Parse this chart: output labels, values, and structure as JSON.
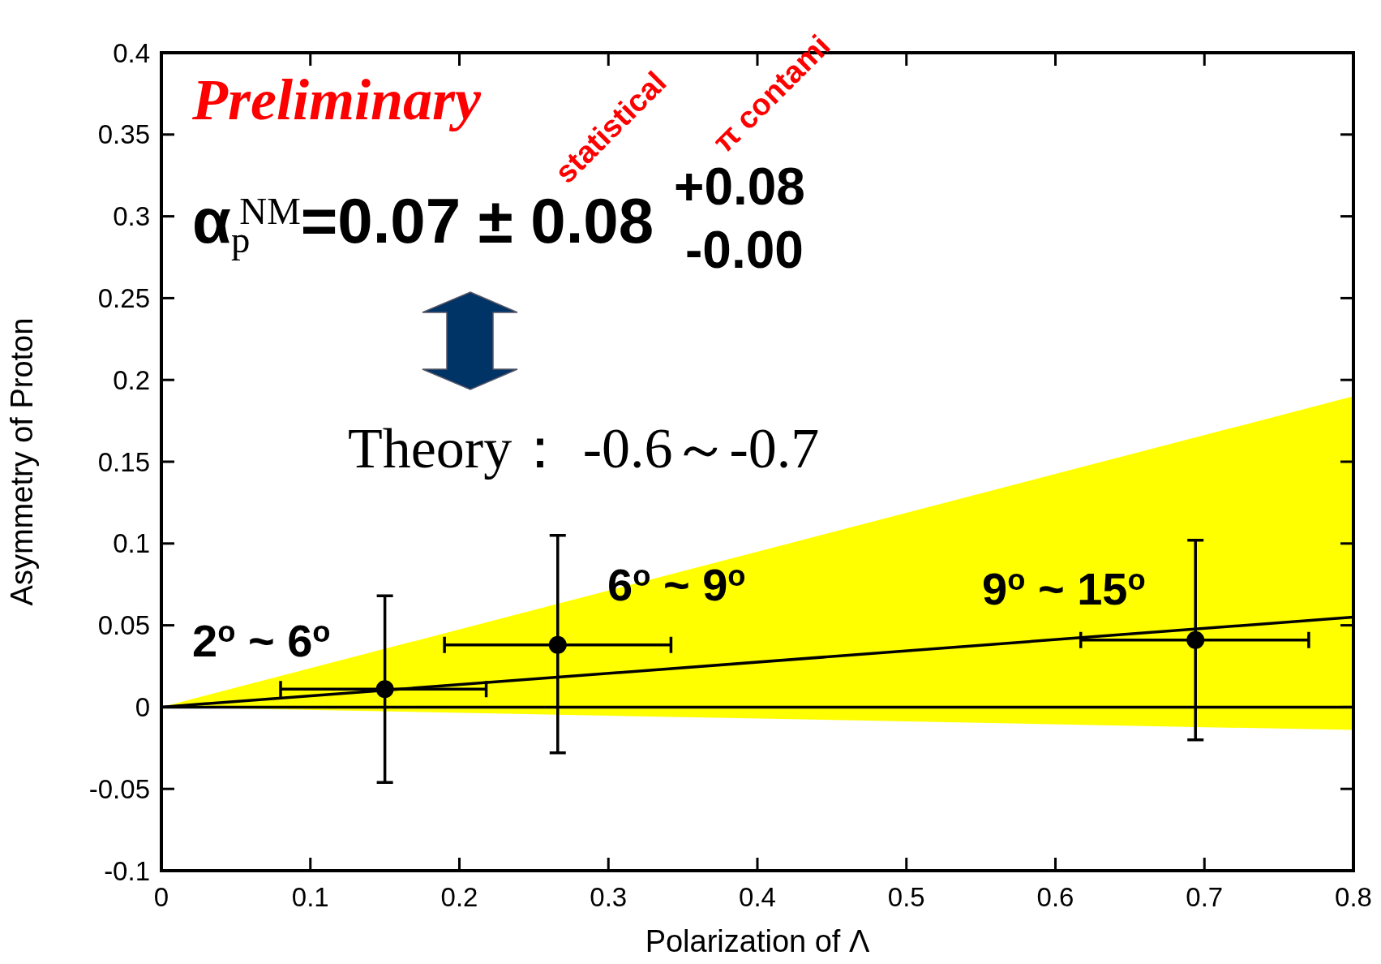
{
  "chart_data": {
    "type": "scatter",
    "xlabel": "Polarization of Λ",
    "ylabel": "Asymmetry of Proton",
    "xlim": [
      0,
      0.8
    ],
    "xticks": [
      0,
      0.1,
      0.2,
      0.3,
      0.4,
      0.5,
      0.6,
      0.7,
      0.8
    ],
    "ylim": [
      -0.1,
      0.4
    ],
    "yticks": [
      -0.1,
      -0.05,
      0,
      0.05,
      0.1,
      0.15,
      0.2,
      0.25,
      0.3,
      0.35,
      0.4
    ],
    "grid": false,
    "series": [
      {
        "type": "line",
        "color": "#000000",
        "x": [
          0,
          0.8
        ],
        "values": [
          0,
          0.055
        ],
        "lower": [
          0,
          -0.014
        ],
        "upper": [
          0,
          0.19
        ],
        "line_style": "solid",
        "marker": "none"
      },
      {
        "color": "#000000",
        "marker": "circle",
        "x": [
          0.15,
          0.266,
          0.694
        ],
        "values": [
          0.011,
          0.038,
          0.041
        ],
        "errors": [
          [
            -0.046,
            0.068
          ],
          [
            -0.028,
            0.105
          ],
          [
            -0.02,
            0.102
          ]
        ],
        "xerrors": [
          [
            0.08,
            0.218
          ],
          [
            0.19,
            0.342
          ],
          [
            0.617,
            0.77
          ]
        ]
      }
    ],
    "ref_lines": [
      {
        "axis": "y",
        "value": 0,
        "color": "#000000"
      }
    ],
    "annotations": [
      "Preliminary",
      "α$_{p}$$^{NM}$=0.07 ± 0.08",
      "+0.08",
      "-0.00",
      "statistical",
      "π contami",
      "Theory： -0.6～-0.7",
      "2$^{o}$ ~ 6$^{o}$",
      "6$^{o}$ ~ 9$^{o}$",
      "9$^{o}$ ~ 15$^{o}$"
    ]
  }
}
